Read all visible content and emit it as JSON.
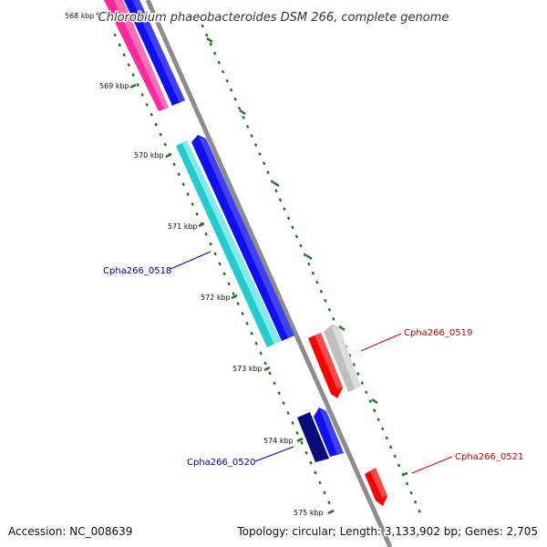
{
  "title": "Chlorobium phaeobacteroides DSM 266, complete genome",
  "accession": "Accession: NC_008639",
  "summary": "Topology: circular; Length: 3,133,902 bp; Genes: 2,705",
  "ticks": [
    "568 kbp",
    "569 kbp",
    "570 kbp",
    "571 kbp",
    "572 kbp",
    "573 kbp",
    "574 kbp",
    "575 kbp"
  ],
  "gene_labels": [
    {
      "name": "Cpha266_0518",
      "color": "#0000aa"
    },
    {
      "name": "Cpha266_0519",
      "color": "#cc0000"
    },
    {
      "name": "Cpha266_0520",
      "color": "#0000aa"
    },
    {
      "name": "Cpha266_0521",
      "color": "#cc0000"
    }
  ],
  "colors": {
    "backbone": "#8c8c8c",
    "tick": "#1a7a1a",
    "magenta": "#ff2a9a",
    "blue": "#1010ee",
    "cyan": "#22cccc",
    "navy": "#0a0a7a",
    "red": "#ff0000",
    "gray": "#bfbfbf"
  }
}
